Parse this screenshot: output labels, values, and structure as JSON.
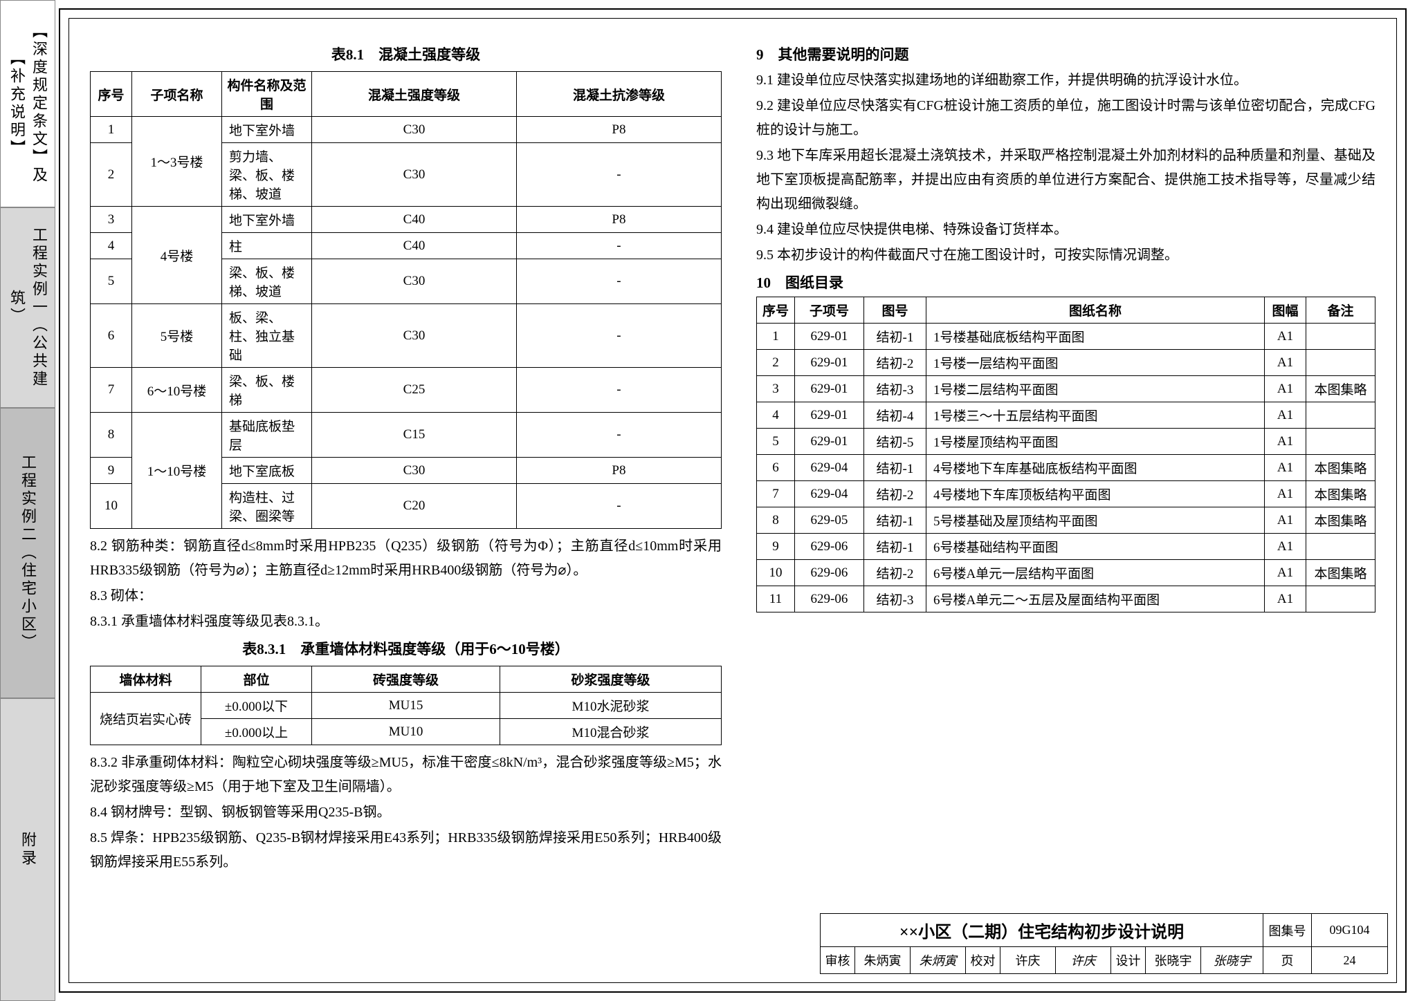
{
  "side_tabs": {
    "t1": "【深度规定条文】及【补充说明】",
    "t2": "工程实例一（公共建筑）",
    "t3": "工程实例二（住宅小区）",
    "t4": "附录"
  },
  "table81": {
    "caption": "表8.1　混凝土强度等级",
    "headers": [
      "序号",
      "子项名称",
      "构件名称及范围",
      "混凝土强度等级",
      "混凝土抗渗等级"
    ],
    "rows": [
      {
        "n": "1",
        "sub": "1～3号楼",
        "rs": 2,
        "part": "地下室外墙",
        "c": "C30",
        "p": "P8"
      },
      {
        "n": "2",
        "part": "剪力墙、梁、板、楼梯、坡道",
        "c": "C30",
        "p": "-"
      },
      {
        "n": "3",
        "sub": "4号楼",
        "rs": 3,
        "part": "地下室外墙",
        "c": "C40",
        "p": "P8"
      },
      {
        "n": "4",
        "part": "柱",
        "c": "C40",
        "p": "-"
      },
      {
        "n": "5",
        "part": "梁、板、楼梯、坡道",
        "c": "C30",
        "p": "-"
      },
      {
        "n": "6",
        "sub": "5号楼",
        "rs": 1,
        "part": "板、梁、柱、独立基础",
        "c": "C30",
        "p": "-"
      },
      {
        "n": "7",
        "sub": "6～10号楼",
        "rs": 1,
        "part": "梁、板、楼梯",
        "c": "C25",
        "p": "-"
      },
      {
        "n": "8",
        "sub": "1～10号楼",
        "rs": 3,
        "part": "基础底板垫层",
        "c": "C15",
        "p": "-"
      },
      {
        "n": "9",
        "part": "地下室底板",
        "c": "C30",
        "p": "P8"
      },
      {
        "n": "10",
        "part": "构造柱、过梁、圈梁等",
        "c": "C20",
        "p": "-"
      }
    ]
  },
  "p82": "8.2 钢筋种类：钢筋直径d≤8mm时采用HPB235（Q235）级钢筋（符号为Φ）；主筋直径d≤10mm时采用HRB335级钢筋（符号为⌀）；主筋直径d≥12mm时采用HRB400级钢筋（符号为⌀）。",
  "p83": "8.3 砌体：",
  "p831": "8.3.1 承重墙体材料强度等级见表8.3.1。",
  "table831": {
    "caption": "表8.3.1　承重墙体材料强度等级（用于6～10号楼）",
    "headers": [
      "墙体材料",
      "部位",
      "砖强度等级",
      "砂浆强度等级"
    ],
    "rows": [
      {
        "mat": "烧结页岩实心砖",
        "rs": 2,
        "pos": "±0.000以下",
        "brick": "MU15",
        "mortar": "M10水泥砂浆"
      },
      {
        "pos": "±0.000以上",
        "brick": "MU10",
        "mortar": "M10混合砂浆"
      }
    ]
  },
  "p832": "8.3.2 非承重砌体材料：陶粒空心砌块强度等级≥MU5，标准干密度≤8kN/m³，混合砂浆强度等级≥M5；水泥砂浆强度等级≥M5（用于地下室及卫生间隔墙）。",
  "p84": "8.4 钢材牌号：型钢、钢板钢管等采用Q235-B钢。",
  "p85": "8.5 焊条：HPB235级钢筋、Q235-B钢材焊接采用E43系列；HRB335级钢筋焊接采用E50系列；HRB400级钢筋焊接采用E55系列。",
  "s9": "9　其他需要说明的问题",
  "p91": "9.1 建设单位应尽快落实拟建场地的详细勘察工作，并提供明确的抗浮设计水位。",
  "p92": "9.2 建设单位应尽快落实有CFG桩设计施工资质的单位，施工图设计时需与该单位密切配合，完成CFG桩的设计与施工。",
  "p93": "9.3 地下车库采用超长混凝土浇筑技术，并采取严格控制混凝土外加剂材料的品种质量和剂量、基础及地下室顶板提高配筋率，并提出应由有资质的单位进行方案配合、提供施工技术指导等，尽量减少结构出现细微裂缝。",
  "p94": "9.4 建设单位应尽快提供电梯、特殊设备订货样本。",
  "p95": "9.5 本初步设计的构件截面尺寸在施工图设计时，可按实际情况调整。",
  "s10": "10　图纸目录",
  "table10": {
    "headers": [
      "序号",
      "子项号",
      "图号",
      "图纸名称",
      "图幅",
      "备注"
    ],
    "rows": [
      [
        "1",
        "629-01",
        "结初-1",
        "1号楼基础底板结构平面图",
        "A1",
        ""
      ],
      [
        "2",
        "629-01",
        "结初-2",
        "1号楼一层结构平面图",
        "A1",
        ""
      ],
      [
        "3",
        "629-01",
        "结初-3",
        "1号楼二层结构平面图",
        "A1",
        "本图集略"
      ],
      [
        "4",
        "629-01",
        "结初-4",
        "1号楼三～十五层结构平面图",
        "A1",
        ""
      ],
      [
        "5",
        "629-01",
        "结初-5",
        "1号楼屋顶结构平面图",
        "A1",
        ""
      ],
      [
        "6",
        "629-04",
        "结初-1",
        "4号楼地下车库基础底板结构平面图",
        "A1",
        "本图集略"
      ],
      [
        "7",
        "629-04",
        "结初-2",
        "4号楼地下车库顶板结构平面图",
        "A1",
        "本图集略"
      ],
      [
        "8",
        "629-05",
        "结初-1",
        "5号楼基础及屋顶结构平面图",
        "A1",
        "本图集略"
      ],
      [
        "9",
        "629-06",
        "结初-1",
        "6号楼基础结构平面图",
        "A1",
        ""
      ],
      [
        "10",
        "629-06",
        "结初-2",
        "6号楼A单元一层结构平面图",
        "A1",
        "本图集略"
      ],
      [
        "11",
        "629-06",
        "结初-3",
        "6号楼A单元二～五层及屋面结构平面图",
        "A1",
        ""
      ]
    ]
  },
  "titleblock": {
    "title": "××小区（二期）住宅结构初步设计说明",
    "set_label": "图集号",
    "set_val": "09G104",
    "review_l": "审核",
    "review_n": "朱炳寅",
    "review_s": "朱炳寅",
    "check_l": "校对",
    "check_n": "许庆",
    "check_s": "许庆",
    "design_l": "设计",
    "design_n": "张晓宇",
    "design_s": "张晓宇",
    "page_l": "页",
    "page_v": "24"
  }
}
